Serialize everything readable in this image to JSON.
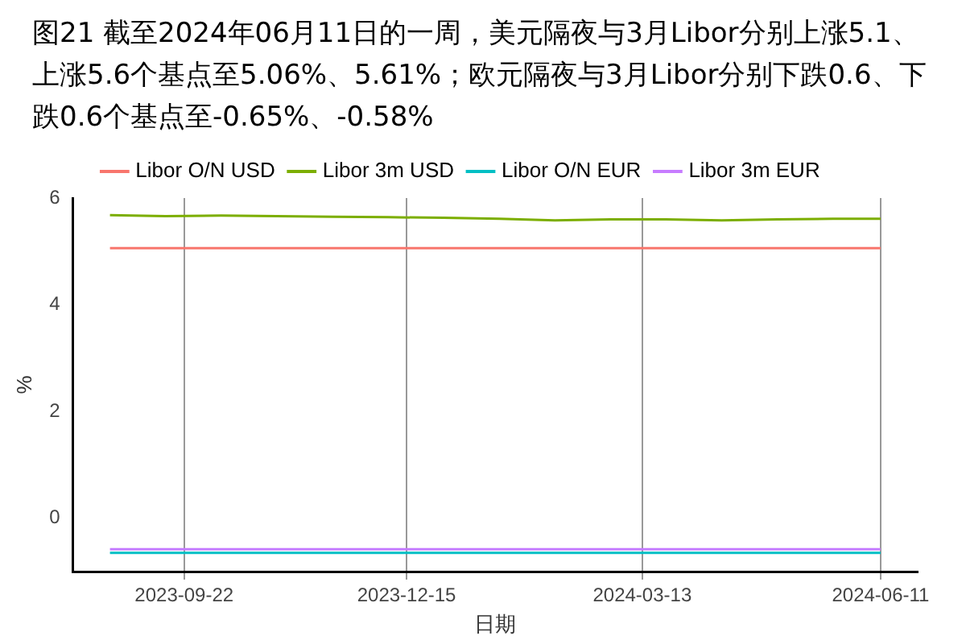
{
  "chart_data": {
    "type": "line",
    "title": "图21  截至2024年06月11日的一周，美元隔夜与3月Libor分别上涨5.1、上涨5.6个基点至5.06%、5.61%；欧元隔夜与3月Libor分别下跌0.6、下跌0.6个基点至-0.65%、-0.58%",
    "xlabel": "日期",
    "ylabel": "%",
    "x": [
      "2023-08-25",
      "2023-09-15",
      "2023-10-06",
      "2023-10-27",
      "2023-11-17",
      "2023-12-08",
      "2023-12-29",
      "2024-01-19",
      "2024-02-09",
      "2024-03-01",
      "2024-03-22",
      "2024-04-12",
      "2024-05-03",
      "2024-05-24",
      "2024-06-11"
    ],
    "series": [
      {
        "name": "Libor O/N USD",
        "color": "#f8766d",
        "values": [
          5.06,
          5.06,
          5.06,
          5.06,
          5.06,
          5.06,
          5.06,
          5.06,
          5.06,
          5.06,
          5.06,
          5.06,
          5.06,
          5.06,
          5.06
        ]
      },
      {
        "name": "Libor 3m USD",
        "color": "#7cae00",
        "values": [
          5.68,
          5.66,
          5.67,
          5.66,
          5.65,
          5.64,
          5.63,
          5.61,
          5.58,
          5.6,
          5.6,
          5.58,
          5.6,
          5.61,
          5.61
        ]
      },
      {
        "name": "Libor O/N EUR",
        "color": "#00bfc4",
        "values": [
          -0.65,
          -0.65,
          -0.65,
          -0.65,
          -0.65,
          -0.65,
          -0.65,
          -0.65,
          -0.65,
          -0.65,
          -0.65,
          -0.65,
          -0.65,
          -0.65,
          -0.65
        ]
      },
      {
        "name": "Libor 3m EUR",
        "color": "#c77cff",
        "values": [
          -0.58,
          -0.58,
          -0.58,
          -0.58,
          -0.58,
          -0.58,
          -0.58,
          -0.58,
          -0.58,
          -0.58,
          -0.58,
          -0.58,
          -0.58,
          -0.58,
          -0.58
        ]
      }
    ],
    "xlim": [
      "2023-08-11",
      "2024-06-25"
    ],
    "xticks": [
      "2023-09-22",
      "2023-12-15",
      "2024-03-13",
      "2024-06-11"
    ],
    "ylim": [
      -1,
      6
    ],
    "yticks": [
      0,
      2,
      4,
      6
    ],
    "grid": "x",
    "legend": "top",
    "marker": "none",
    "line_style": "solid"
  }
}
